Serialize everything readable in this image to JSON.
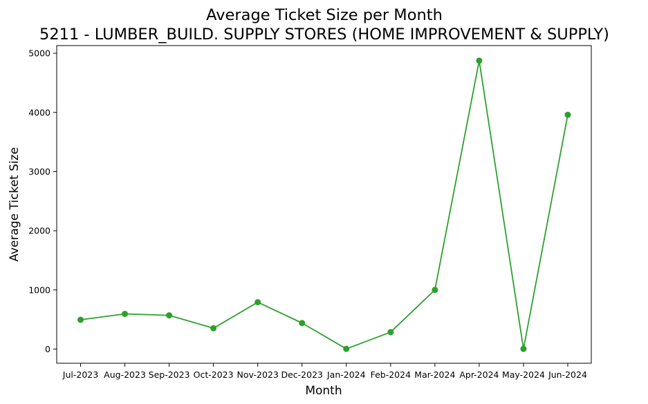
{
  "chart_data": {
    "type": "line",
    "title": "Average Ticket Size per Month",
    "subtitle": "5211 - LUMBER_BUILD. SUPPLY STORES (HOME IMPROVEMENT & SUPPLY)",
    "xlabel": "Month",
    "ylabel": "Average Ticket Size",
    "categories": [
      "Jul-2023",
      "Aug-2023",
      "Sep-2023",
      "Oct-2023",
      "Nov-2023",
      "Dec-2023",
      "Jan-2024",
      "Feb-2024",
      "Mar-2024",
      "Apr-2024",
      "May-2024",
      "Jun-2024"
    ],
    "series": [
      {
        "values": [
          495,
          595,
          570,
          352,
          792,
          440,
          3,
          286,
          1000,
          4875,
          3,
          3960
        ],
        "color": "#2ca02c",
        "marker": "circle"
      }
    ],
    "yticks": [
      0,
      1000,
      2000,
      3000,
      4000,
      5000
    ],
    "ylim": [
      -240,
      5130
    ],
    "grid": false
  }
}
